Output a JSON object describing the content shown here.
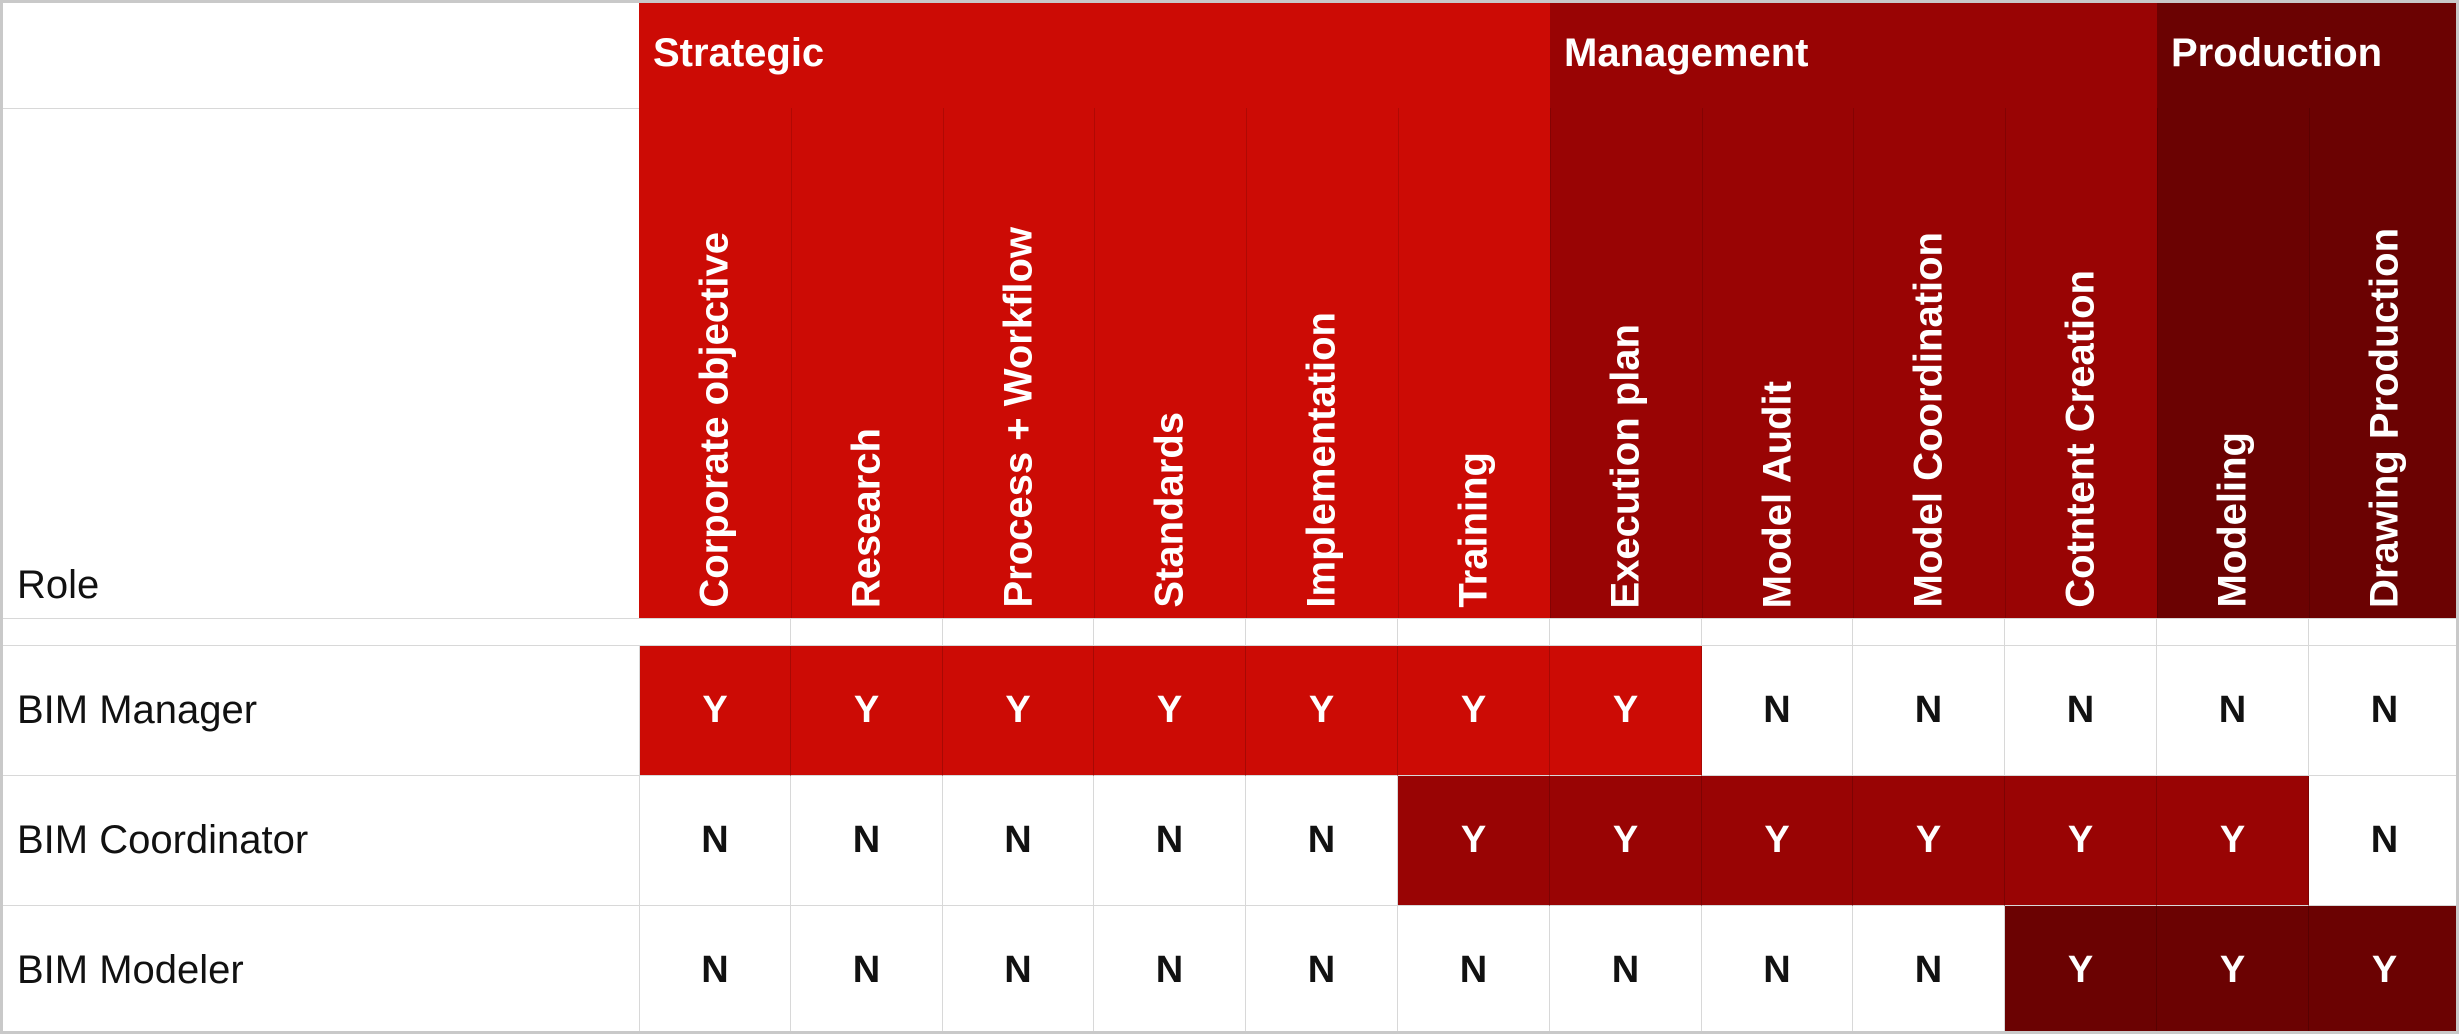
{
  "table": {
    "role_header": "Role",
    "groups": [
      {
        "label": "Strategic",
        "color": "#cc0b05",
        "span": 6
      },
      {
        "label": "Management",
        "color": "#990404",
        "span": 4
      },
      {
        "label": "Production",
        "color": "#6b0202",
        "span": 2
      }
    ],
    "columns": [
      "Corporate objective",
      "Research",
      "Process + Workflow",
      "Standards",
      "Implementation",
      "Training",
      "Execution plan",
      "Model Audit",
      "Model Coordination",
      "Cotntent Creation",
      "Modeling",
      "Drawing Production"
    ],
    "rows": [
      {
        "role": "BIM Manager",
        "values": [
          "Y",
          "Y",
          "Y",
          "Y",
          "Y",
          "Y",
          "Y",
          "N",
          "N",
          "N",
          "N",
          "N"
        ],
        "color": "#cc0b05"
      },
      {
        "role": "BIM Coordinator",
        "values": [
          "N",
          "N",
          "N",
          "N",
          "N",
          "Y",
          "Y",
          "Y",
          "Y",
          "Y",
          "Y",
          "N"
        ],
        "color": "#990404"
      },
      {
        "role": "BIM Modeler",
        "values": [
          "N",
          "N",
          "N",
          "N",
          "N",
          "N",
          "N",
          "N",
          "N",
          "Y",
          "Y",
          "Y"
        ],
        "color": "#6b0202"
      }
    ]
  }
}
